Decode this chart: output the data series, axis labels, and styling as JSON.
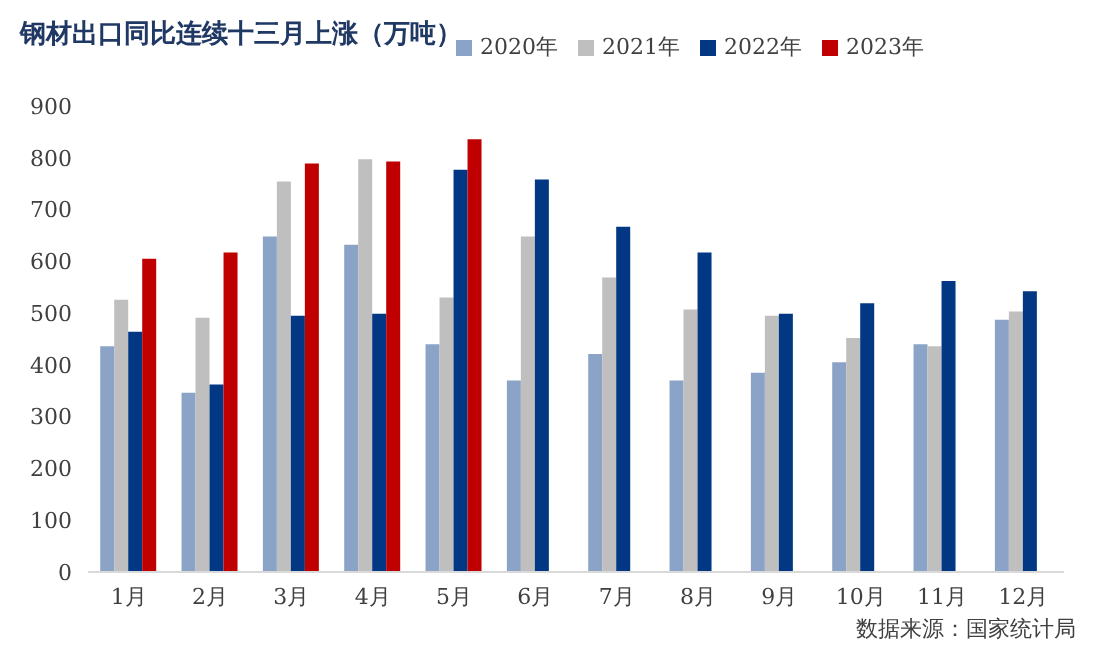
{
  "chart_data": {
    "type": "bar",
    "title": "钢材出口同比连续十三月上涨（万吨）",
    "categories": [
      "1月",
      "2月",
      "3月",
      "4月",
      "5月",
      "6月",
      "7月",
      "8月",
      "9月",
      "10月",
      "11月",
      "12月"
    ],
    "series": [
      {
        "name": "2020年",
        "color": "#8ba3c7",
        "values": [
          436,
          346,
          648,
          632,
          440,
          370,
          421,
          370,
          385,
          405,
          440,
          487
        ]
      },
      {
        "name": "2021年",
        "color": "#bfbfbf",
        "values": [
          526,
          491,
          754,
          797,
          530,
          648,
          569,
          507,
          495,
          452,
          436,
          503
        ]
      },
      {
        "name": "2022年",
        "color": "#023883",
        "values": [
          464,
          362,
          495,
          499,
          777,
          758,
          667,
          617,
          499,
          519,
          562,
          542
        ]
      },
      {
        "name": "2023年",
        "color": "#c00000",
        "values": [
          605,
          617,
          789,
          793,
          836,
          null,
          null,
          null,
          null,
          null,
          null,
          null
        ]
      }
    ],
    "ylim": [
      0,
      900
    ],
    "yticks": [
      0,
      100,
      200,
      300,
      400,
      500,
      600,
      700,
      800,
      900
    ],
    "legend": "top",
    "grid": false,
    "annotations": [
      "数据来源：国家统计局"
    ]
  }
}
